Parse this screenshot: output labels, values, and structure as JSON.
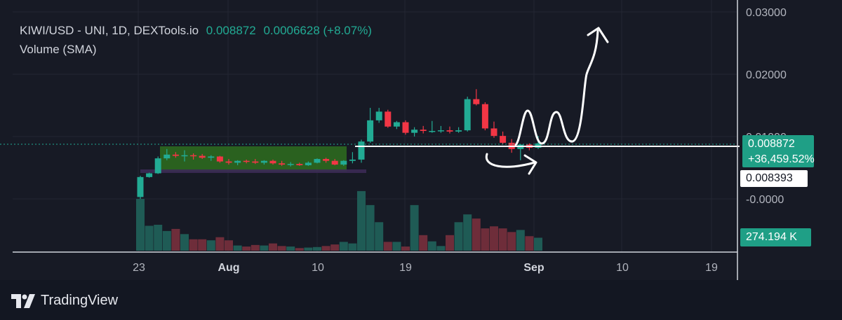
{
  "header": {
    "symbol_line": "KIWI/USD - UNI, 1D, DEXTools.io",
    "price": "0.008872",
    "change": "0.0006628 (+8.07%)",
    "volume_label": "Volume (SMA)"
  },
  "price_axis": {
    "labels": [
      "0.03000",
      "0.02000",
      "0.01000",
      "-0.0000"
    ]
  },
  "tags": {
    "price_tag": "0.008872",
    "pct_tag": "+36,459.52%",
    "level_tag": "0.008393",
    "volume_tag": "274.194 K"
  },
  "time_axis": {
    "labels": [
      "23",
      "Aug",
      "10",
      "19",
      "Sep",
      "10",
      "19"
    ]
  },
  "footer": {
    "brand": "TradingView"
  },
  "colors": {
    "up": "#22ab94",
    "down": "#f23645",
    "up_volume": "#1f5b55",
    "down_volume": "#6e2d3a",
    "background": "#171a25",
    "consolidation_box": "#2e6e1f"
  },
  "chart_data": {
    "type": "candlestick",
    "x_unit": "days",
    "ylim": [
      -0.0025,
      0.0305
    ],
    "current_price": 0.008872,
    "support_level": 0.008393,
    "candles": [
      {
        "date": "Jul 22",
        "o": 0.0003,
        "h": 0.0037,
        "l": 0.0,
        "c": 0.0035,
        "v": 100
      },
      {
        "date": "Jul 23",
        "o": 0.0035,
        "h": 0.0042,
        "l": 0.0034,
        "c": 0.0041,
        "v": 48
      },
      {
        "date": "Jul 24",
        "o": 0.0041,
        "h": 0.0068,
        "l": 0.004,
        "c": 0.0065,
        "v": 50
      },
      {
        "date": "Jul 25",
        "o": 0.0065,
        "h": 0.008,
        "l": 0.0062,
        "c": 0.0071,
        "v": 38
      },
      {
        "date": "Jul 26",
        "o": 0.0071,
        "h": 0.0075,
        "l": 0.0066,
        "c": 0.0069,
        "v": 42
      },
      {
        "date": "Jul 27",
        "o": 0.0069,
        "h": 0.0078,
        "l": 0.006,
        "c": 0.007,
        "v": 32
      },
      {
        "date": "Jul 28",
        "o": 0.007,
        "h": 0.0073,
        "l": 0.0063,
        "c": 0.0069,
        "v": 22
      },
      {
        "date": "Jul 29",
        "o": 0.0069,
        "h": 0.0072,
        "l": 0.0064,
        "c": 0.0066,
        "v": 22
      },
      {
        "date": "Jul 30",
        "o": 0.0066,
        "h": 0.007,
        "l": 0.0061,
        "c": 0.0068,
        "v": 20
      },
      {
        "date": "Jul 31",
        "o": 0.0068,
        "h": 0.0069,
        "l": 0.0058,
        "c": 0.006,
        "v": 26
      },
      {
        "date": "Aug 1",
        "o": 0.006,
        "h": 0.0064,
        "l": 0.0055,
        "c": 0.0058,
        "v": 20
      },
      {
        "date": "Aug 2",
        "o": 0.0058,
        "h": 0.0062,
        "l": 0.0054,
        "c": 0.0061,
        "v": 10
      },
      {
        "date": "Aug 3",
        "o": 0.0061,
        "h": 0.0063,
        "l": 0.0057,
        "c": 0.006,
        "v": 8
      },
      {
        "date": "Aug 4",
        "o": 0.006,
        "h": 0.0064,
        "l": 0.0056,
        "c": 0.0058,
        "v": 11
      },
      {
        "date": "Aug 5",
        "o": 0.0058,
        "h": 0.0062,
        "l": 0.0055,
        "c": 0.0061,
        "v": 10
      },
      {
        "date": "Aug 6",
        "o": 0.0061,
        "h": 0.0063,
        "l": 0.0055,
        "c": 0.0057,
        "v": 14
      },
      {
        "date": "Aug 7",
        "o": 0.0057,
        "h": 0.0061,
        "l": 0.0053,
        "c": 0.0055,
        "v": 9
      },
      {
        "date": "Aug 8",
        "o": 0.0055,
        "h": 0.0059,
        "l": 0.0052,
        "c": 0.0056,
        "v": 8
      },
      {
        "date": "Aug 9",
        "o": 0.0056,
        "h": 0.0058,
        "l": 0.0053,
        "c": 0.0054,
        "v": 5
      },
      {
        "date": "Aug 10",
        "o": 0.0054,
        "h": 0.006,
        "l": 0.0053,
        "c": 0.0058,
        "v": 6
      },
      {
        "date": "Aug 11",
        "o": 0.0058,
        "h": 0.0065,
        "l": 0.0057,
        "c": 0.0064,
        "v": 7
      },
      {
        "date": "Aug 12",
        "o": 0.0064,
        "h": 0.0066,
        "l": 0.0058,
        "c": 0.0061,
        "v": 9
      },
      {
        "date": "Aug 13",
        "o": 0.0061,
        "h": 0.0064,
        "l": 0.0054,
        "c": 0.0055,
        "v": 12
      },
      {
        "date": "Aug 14",
        "o": 0.0055,
        "h": 0.0062,
        "l": 0.0053,
        "c": 0.0061,
        "v": 17
      },
      {
        "date": "Aug 15",
        "o": 0.0061,
        "h": 0.0075,
        "l": 0.0057,
        "c": 0.0063,
        "v": 14
      },
      {
        "date": "Aug 16",
        "o": 0.0063,
        "h": 0.0095,
        "l": 0.0058,
        "c": 0.0092,
        "v": 115
      },
      {
        "date": "Aug 17",
        "o": 0.0092,
        "h": 0.0146,
        "l": 0.009,
        "c": 0.0126,
        "v": 88
      },
      {
        "date": "Aug 18",
        "o": 0.0126,
        "h": 0.0146,
        "l": 0.0122,
        "c": 0.014,
        "v": 55
      },
      {
        "date": "Aug 19",
        "o": 0.014,
        "h": 0.0143,
        "l": 0.0114,
        "c": 0.0116,
        "v": 17
      },
      {
        "date": "Aug 20",
        "o": 0.0116,
        "h": 0.0125,
        "l": 0.0112,
        "c": 0.0123,
        "v": 17
      },
      {
        "date": "Aug 21",
        "o": 0.0123,
        "h": 0.0126,
        "l": 0.0103,
        "c": 0.0106,
        "v": 8
      },
      {
        "date": "Aug 22",
        "o": 0.0106,
        "h": 0.0115,
        "l": 0.01,
        "c": 0.0111,
        "v": 88
      },
      {
        "date": "Aug 23",
        "o": 0.0111,
        "h": 0.0117,
        "l": 0.0105,
        "c": 0.0109,
        "v": 30
      },
      {
        "date": "Aug 24",
        "o": 0.0109,
        "h": 0.0125,
        "l": 0.0106,
        "c": 0.0109,
        "v": 18
      },
      {
        "date": "Aug 25",
        "o": 0.0109,
        "h": 0.0117,
        "l": 0.0106,
        "c": 0.011,
        "v": 9
      },
      {
        "date": "Aug 26",
        "o": 0.011,
        "h": 0.0116,
        "l": 0.0105,
        "c": 0.0108,
        "v": 30
      },
      {
        "date": "Aug 27",
        "o": 0.0108,
        "h": 0.0115,
        "l": 0.0106,
        "c": 0.011,
        "v": 55
      },
      {
        "date": "Aug 28",
        "o": 0.011,
        "h": 0.0164,
        "l": 0.0108,
        "c": 0.016,
        "v": 70
      },
      {
        "date": "Aug 29",
        "o": 0.016,
        "h": 0.0176,
        "l": 0.015,
        "c": 0.0152,
        "v": 62
      },
      {
        "date": "Aug 30",
        "o": 0.0152,
        "h": 0.0155,
        "l": 0.011,
        "c": 0.0113,
        "v": 43
      },
      {
        "date": "Aug 31",
        "o": 0.0113,
        "h": 0.0124,
        "l": 0.0098,
        "c": 0.0101,
        "v": 47
      },
      {
        "date": "Sep 1",
        "o": 0.0101,
        "h": 0.0108,
        "l": 0.0088,
        "c": 0.009,
        "v": 43
      },
      {
        "date": "Sep 2",
        "o": 0.009,
        "h": 0.0096,
        "l": 0.0074,
        "c": 0.008,
        "v": 36
      },
      {
        "date": "Sep 3",
        "o": 0.008,
        "h": 0.0088,
        "l": 0.0062,
        "c": 0.0087,
        "v": 40
      },
      {
        "date": "Sep 4",
        "o": 0.0087,
        "h": 0.0089,
        "l": 0.0078,
        "c": 0.0082,
        "v": 28
      },
      {
        "date": "Sep 5",
        "o": 0.0082,
        "h": 0.0101,
        "l": 0.008,
        "c": 0.0089,
        "v": 25
      }
    ]
  }
}
